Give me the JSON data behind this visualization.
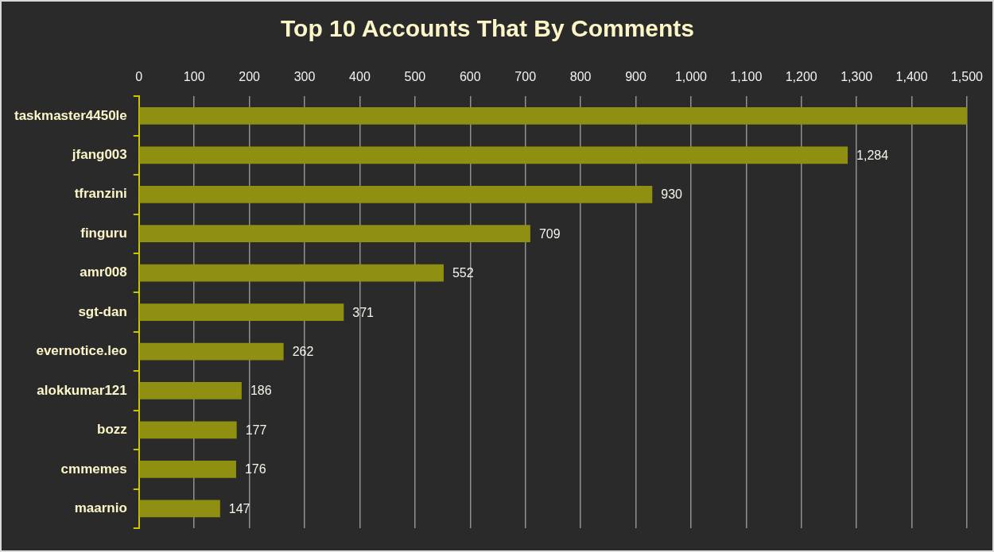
{
  "chart_data": {
    "type": "bar",
    "orientation": "horizontal",
    "title": "Top 10 Accounts That By Comments",
    "categories": [
      "taskmaster4450le",
      "jfang003",
      "tfranzini",
      "finguru",
      "amr008",
      "sgt-dan",
      "evernotice.leo",
      "alokkumar121",
      "bozz",
      "cmmemes",
      "maarnio"
    ],
    "values": [
      1500,
      1284,
      930,
      709,
      552,
      371,
      262,
      186,
      177,
      176,
      147
    ],
    "value_labels": [
      null,
      "1,284",
      "930",
      "709",
      "552",
      "371",
      "262",
      "186",
      "177",
      "176",
      "147"
    ],
    "color": "#8f8f12",
    "xlim": [
      0,
      1500
    ],
    "xticks": [
      0,
      100,
      200,
      300,
      400,
      500,
      600,
      700,
      800,
      900,
      {
        "value": 1000,
        "label": "1,000"
      },
      {
        "value": 1100,
        "label": "1,100"
      },
      {
        "value": 1200,
        "label": "1,200"
      },
      {
        "value": 1300,
        "label": "1,300"
      },
      {
        "value": 1400,
        "label": "1,400"
      },
      {
        "value": 1500,
        "label": "1,500"
      }
    ],
    "grid": "x"
  }
}
